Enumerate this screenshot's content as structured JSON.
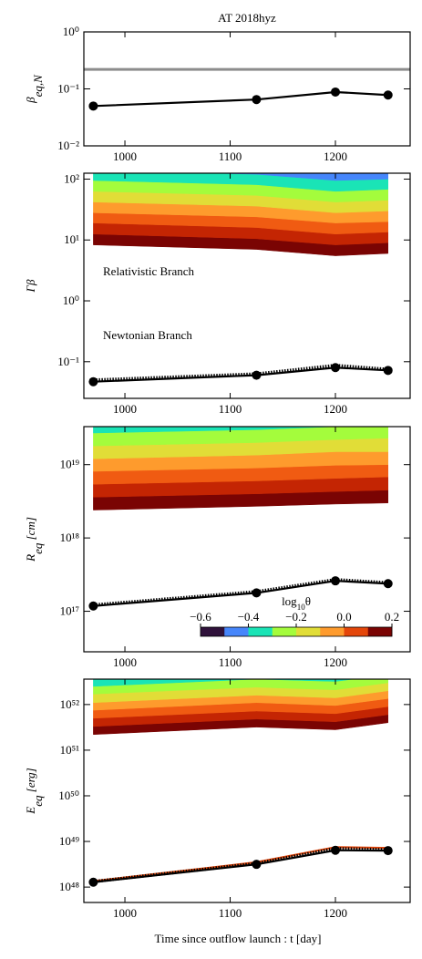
{
  "chart_data": [
    {
      "type": "line",
      "title": "AT 2018hyz",
      "ylabel": [
        {
          "text": "β"
        },
        {
          "text": "eq,N",
          "sub": true
        }
      ],
      "x": [
        970,
        1125,
        1200,
        1250
      ],
      "xlim": [
        961,
        1271
      ],
      "xticks": [
        1000,
        1100,
        1200
      ],
      "ylim": [
        0.01,
        1
      ],
      "log_y": true,
      "yticks": [
        {
          "value": 0.01,
          "label": "10⁻²"
        },
        {
          "value": 0.1,
          "label": "10⁻¹"
        },
        {
          "value": 1,
          "label": "10⁰"
        }
      ],
      "hlines": [
        {
          "value": 0.22,
          "color": "#8c8c8c"
        }
      ],
      "series": [
        {
          "color": "#000000",
          "values": [
            0.05,
            0.065,
            0.088,
            0.078
          ],
          "marker": true
        }
      ]
    },
    {
      "type": "line",
      "ylabel": [
        {
          "text": "Γβ"
        }
      ],
      "annotations": [
        "Relativistic Branch",
        "Newtonian Branch"
      ],
      "x": [
        970,
        1125,
        1200,
        1250
      ],
      "xlim": [
        961,
        1271
      ],
      "xticks": [
        1000,
        1100,
        1200
      ],
      "ylim": [
        0.025,
        125
      ],
      "log_y": true,
      "yticks": [
        {
          "value": 0.1,
          "label": "10⁻¹"
        },
        {
          "value": 1,
          "label": "10⁰"
        },
        {
          "value": 10,
          "label": "10¹"
        },
        {
          "value": 100,
          "label": "10²"
        }
      ],
      "bands": {
        "colors": [
          "#7a0403",
          "#c42503",
          "#f05b12",
          "#fe9b2d",
          "#e1dd37",
          "#a4fc3c",
          "#1ae4b6",
          "#4686fb"
        ],
        "boundaries": [
          [
            8.3,
            7.0,
            5.5,
            6.0
          ],
          [
            12.5,
            10.5,
            8.3,
            9
          ],
          [
            19,
            16,
            12.5,
            13.5
          ],
          [
            28,
            24,
            19,
            20
          ],
          [
            42,
            36,
            28,
            30
          ],
          [
            63,
            54,
            42,
            45
          ],
          [
            95,
            81,
            63,
            68
          ],
          [
            140,
            120,
            95,
            100
          ],
          [
            210,
            180,
            140,
            150
          ]
        ]
      },
      "series": [
        {
          "color": "#000000",
          "values": [
            0.05,
            0.063,
            0.087,
            0.075
          ],
          "dotted": true
        },
        {
          "color": "#000000",
          "values": [
            0.047,
            0.06,
            0.08,
            0.072
          ],
          "marker": true
        }
      ]
    },
    {
      "type": "line",
      "ylabel": [
        {
          "text": "R"
        },
        {
          "text": "eq",
          "sub": true
        },
        {
          "text": " [cm]"
        }
      ],
      "x": [
        970,
        1125,
        1200,
        1250
      ],
      "xlim": [
        961,
        1271
      ],
      "xticks": [
        1000,
        1100,
        1200
      ],
      "ylim": [
        2.8e+16,
        3.3e+19
      ],
      "log_y": true,
      "yticks": [
        {
          "value": 1e+17,
          "label": "10¹⁷"
        },
        {
          "value": 1e+18,
          "label": "10¹⁸"
        },
        {
          "value": 1e+19,
          "label": "10¹⁹"
        }
      ],
      "bands": {
        "colors": [
          "#7a0403",
          "#c42503",
          "#f05b12",
          "#fe9b2d",
          "#e1dd37",
          "#a4fc3c",
          "#1ae4b6",
          "#4686fb"
        ],
        "boundaries": [
          [
            2.4e+18,
            2.7e+18,
            2.9e+18,
            3e+18
          ],
          [
            3.6e+18,
            4e+18,
            4.3e+18,
            4.5e+18
          ],
          [
            5.4e+18,
            6e+18,
            6.5e+18,
            6.8e+18
          ],
          [
            8.1e+18,
            9e+18,
            9.8e+18,
            1e+19
          ],
          [
            1.2e+19,
            1.35e+19,
            1.5e+19,
            1.5e+19
          ],
          [
            1.8e+19,
            2e+19,
            2.2e+19,
            2.3e+19
          ],
          [
            2.7e+19,
            3e+19,
            3.3e+19,
            3.4e+19
          ],
          [
            4.1e+19,
            4.5e+19,
            4.9e+19,
            5.1e+19
          ],
          [
            6.1e+19,
            6.8e+19,
            7.4e+19,
            7.7e+19
          ]
        ]
      },
      "colorbar": {
        "label": [
          {
            "text": "log"
          },
          {
            "text": "10",
            "sub": true
          },
          {
            "text": "θ"
          }
        ],
        "lim": [
          -0.6,
          0.2
        ],
        "ticks": [
          {
            "value": -0.6,
            "label": "−0.6"
          },
          {
            "value": -0.4,
            "label": "−0.4"
          },
          {
            "value": -0.2,
            "label": "−0.2"
          },
          {
            "value": 0,
            "label": "0.0"
          },
          0.2
        ],
        "colors": [
          "#30123b",
          "#4686fb",
          "#1ae4b6",
          "#a4fc3c",
          "#e1dd37",
          "#fe9b2d",
          "#e4460a",
          "#7a0403"
        ]
      },
      "series": [
        {
          "color": "#000000",
          "values": [
            1.22e+17,
            1.85e+17,
            2.7e+17,
            2.45e+17
          ],
          "dotted": true
        },
        {
          "color": "#000000",
          "values": [
            1.18e+17,
            1.78e+17,
            2.6e+17,
            2.38e+17
          ],
          "marker": true
        }
      ]
    },
    {
      "type": "line",
      "ylabel": [
        {
          "text": "E"
        },
        {
          "text": "eq",
          "sub": true
        },
        {
          "text": " [erg]"
        }
      ],
      "xlabel": "Time since outflow launch : t [day]",
      "x": [
        970,
        1125,
        1200,
        1250
      ],
      "xlim": [
        961,
        1271
      ],
      "xticks": [
        1000,
        1100,
        1200
      ],
      "ylim": [
        4.6e+47,
        3.6e+52
      ],
      "log_y": true,
      "yticks": [
        {
          "value": 1e+48,
          "label": "10⁴⁸"
        },
        {
          "value": 1e+49,
          "label": "10⁴⁹"
        },
        {
          "value": 1e+50,
          "label": "10⁵⁰"
        },
        {
          "value": 1e+51,
          "label": "10⁵¹"
        },
        {
          "value": 1e+52,
          "label": "10⁵²"
        }
      ],
      "bands": {
        "colors": [
          "#7a0403",
          "#c42503",
          "#f05b12",
          "#fe9b2d",
          "#e1dd37",
          "#a4fc3c",
          "#1ae4b6",
          "#4686fb"
        ],
        "boundaries": [
          [
            2.2e+51,
            3.2e+51,
            2.8e+51,
            4e+51
          ],
          [
            3.3e+51,
            4.8e+51,
            4.2e+51,
            6e+51
          ],
          [
            5e+51,
            7.2e+51,
            6.3e+51,
            9e+51
          ],
          [
            7.5e+51,
            1.1e+52,
            9.5e+51,
            1.35e+52
          ],
          [
            1.1e+52,
            1.6e+52,
            1.4e+52,
            2e+52
          ],
          [
            1.7e+52,
            2.4e+52,
            2.1e+52,
            3e+52
          ],
          [
            2.5e+52,
            3.6e+52,
            3.2e+52,
            4.5e+52
          ],
          [
            3.8e+52,
            5.4e+52,
            4.8e+52,
            6.8e+52
          ],
          [
            5.7e+52,
            8.1e+52,
            7.2e+52,
            1e+53
          ]
        ]
      },
      "series": [
        {
          "color": "#e4460a",
          "values": [
            1.35e+48,
            3.5e+48,
            7.5e+48,
            7.2e+48
          ]
        },
        {
          "color": "#000000",
          "values": [
            1.32e+48,
            3.3e+48,
            7e+48,
            6.6e+48
          ],
          "dotted": true
        },
        {
          "color": "#000000",
          "values": [
            1.28e+48,
            3.15e+48,
            6.4e+48,
            6.3e+48
          ],
          "marker": true
        }
      ]
    }
  ]
}
